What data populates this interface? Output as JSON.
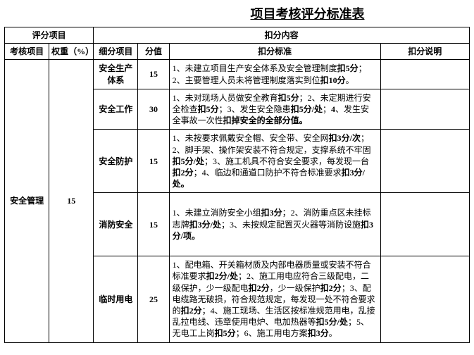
{
  "title": "项目考核评分标准表",
  "header": {
    "scoring_items": "评分项目",
    "deduction_content": "扣分内容",
    "assess_item": "考核项目",
    "weight": "权重（%）",
    "sub_item": "细分项目",
    "score": "分值",
    "standard": "扣分标准",
    "note": "扣分说明"
  },
  "category": {
    "name": "安全管理",
    "weight": "15"
  },
  "rows": [
    {
      "sub_item": "安全生产体系",
      "score": "15",
      "standard": "1、未建立项目生产安全体系及安全管理制度<b>扣5分</b>； 2、主要管理人员未将管理制度落实到位<b>扣10分</b>。"
    },
    {
      "sub_item": "安全工作",
      "score": "30",
      "standard": "1、未对现场人员做安全教育<b>扣5分</b>；2、未定期进行安全检查<b>扣5分</b>；3、发生安全隐患<b>扣5分/处</b>；<b>4</b>、发生安全事故一次性<b>扣掉安全的全部分值。</b>"
    },
    {
      "sub_item": "安全防护",
      "score": "15",
      "standard": "1、未按要求佩戴安全帽、安全带、安全网<b>扣3分/次</b>；2、脚手架、操作架安装不符合规定，支撑系统不牢固<b>扣5分/处</b>；3、施工机具不符合安全要求，每发现一台<b>扣2分</b>；4、临边和通道口防护不符合标准要求<b>扣3分/处。</b>"
    },
    {
      "sub_item": "消防安全",
      "score": "15",
      "standard": "1、未建立消防安全小组<b>扣3分</b>；2、消防重点区未挂标志牌<b>扣3分/处</b>；3、未按规定配置灭火器等消防设施<b>扣3分/项。</b>"
    },
    {
      "sub_item": "临时用电",
      "score": "25",
      "standard": "1、配电箱、开关箱材质及内部电器质量或安装不符合标准要求<b>扣2分/处</b>；2、施工用电应符合三级配电，二级保护，少一级配电<b>扣2分</b>，少一级保护<b>扣2分</b>；3、配电缆路无破损，符合规范规定，每发现一处不符合要求的<b>扣2分</b>；4、施工现场、生活区按标准规范用电，乱接乱拉电线、违章使用电炉、电加热器等<b>扣5分/处</b>；5、无电工上岗<b>扣5分</b>；6、施工用电方案<b>扣3分</b>。"
    }
  ]
}
